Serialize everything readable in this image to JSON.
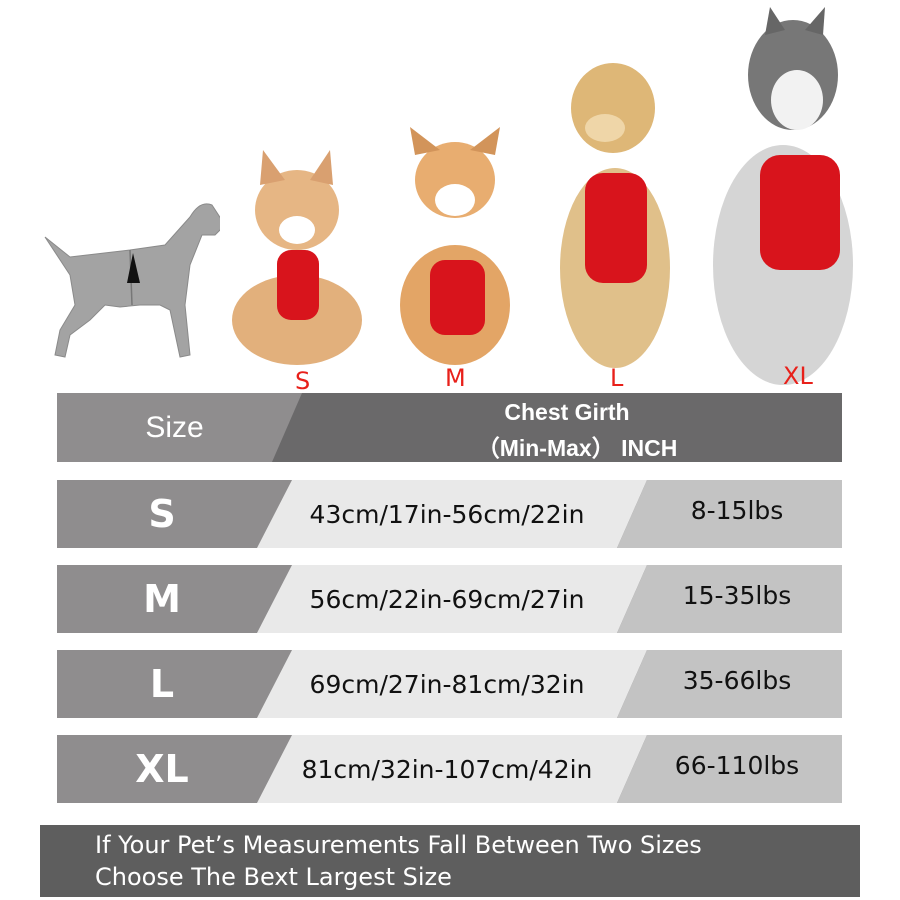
{
  "dog_labels": [
    "S",
    "M",
    "L",
    "XL"
  ],
  "header": {
    "size_label": "Size",
    "girth_line1": "Chest Girth",
    "girth_line2": "（Min-Max）  INCH"
  },
  "rows": [
    {
      "size": "S",
      "girth": "43cm/17in-56cm/22in",
      "weight": "8-15lbs"
    },
    {
      "size": "M",
      "girth": "56cm/22in-69cm/27in",
      "weight": "15-35lbs"
    },
    {
      "size": "L",
      "girth": "69cm/27in-81cm/32in",
      "weight": "35-66lbs"
    },
    {
      "size": "XL",
      "girth": "81cm/32in-107cm/42in",
      "weight": "66-110lbs"
    }
  ],
  "footer": {
    "line1": "If Your Pet’s Measurements Fall Between Two Sizes",
    "line2": "Choose The Bext Largest Size"
  },
  "colors": {
    "label_red": "#e8201a",
    "harness_red": "#d8141c",
    "header_dark": "#6a696a",
    "header_light": "#8f8d8e",
    "footer_bg": "#5e5e5e"
  }
}
